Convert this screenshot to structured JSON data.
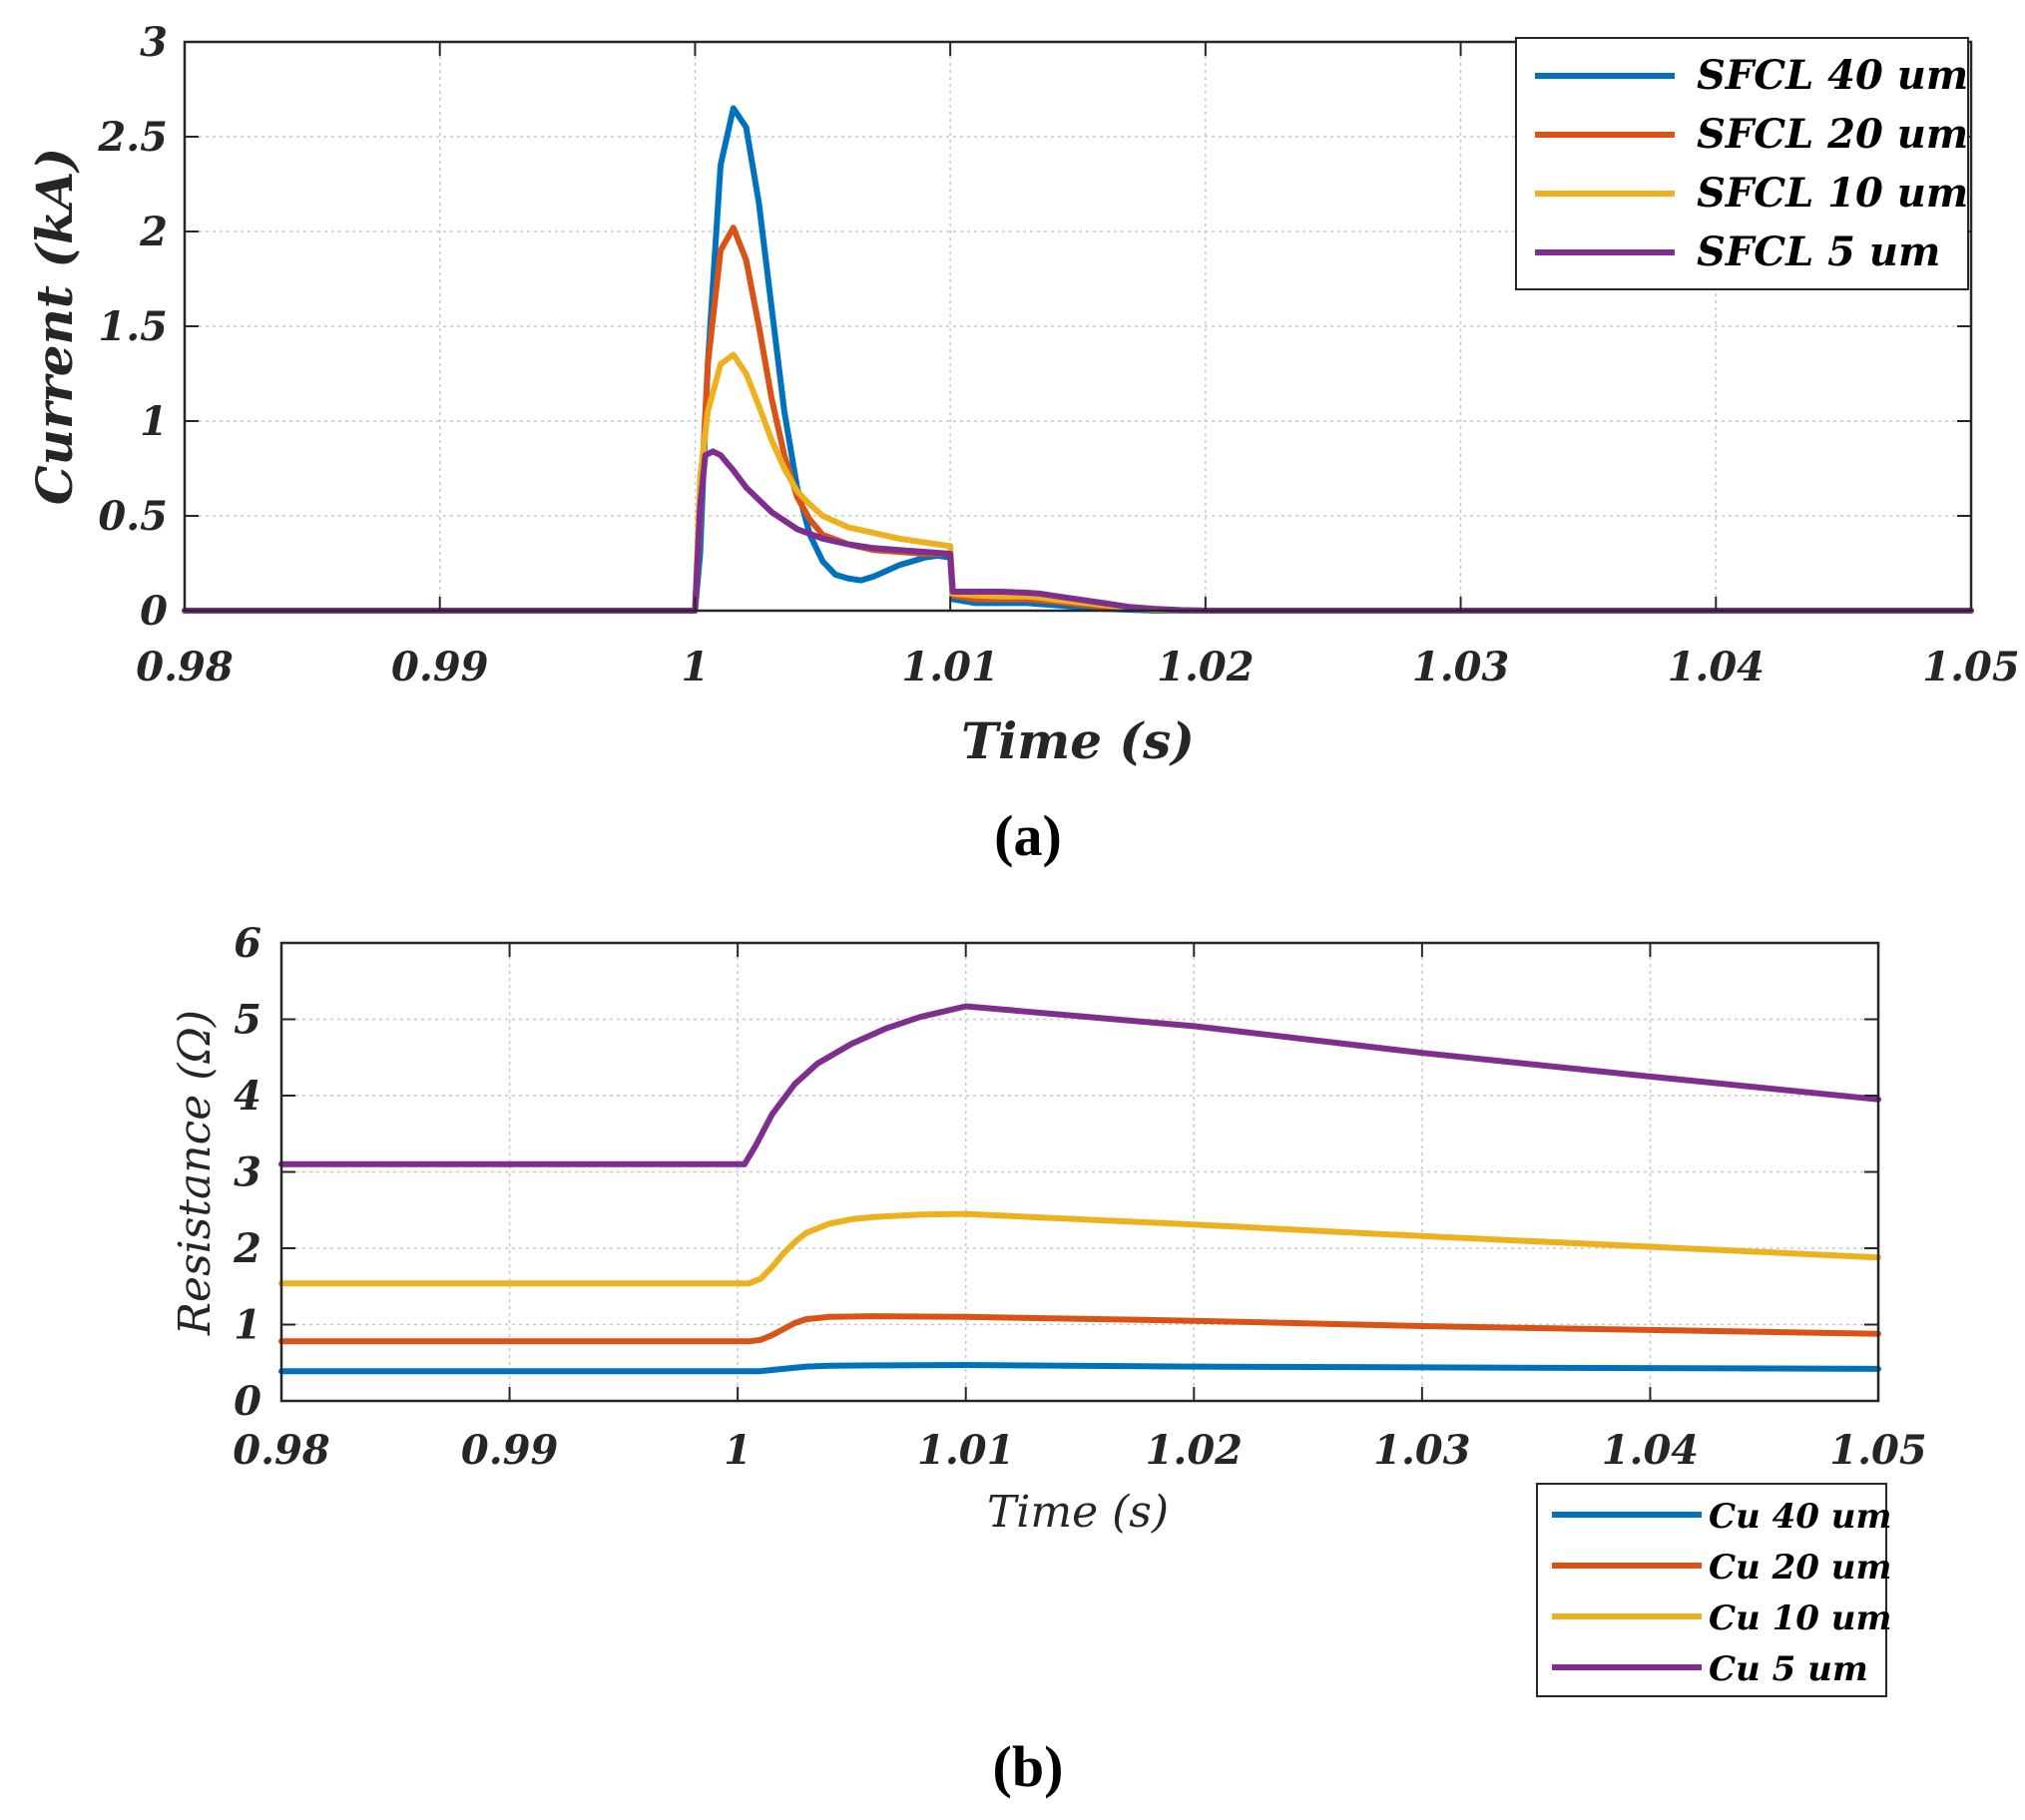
{
  "chart_data": [
    {
      "id": "a",
      "type": "line",
      "caption_letter": "a",
      "xlabel": "Time (s)",
      "ylabel": "Current (kA)",
      "xlim": [
        0.98,
        1.05
      ],
      "ylim": [
        0,
        3
      ],
      "xticks": [
        0.98,
        0.99,
        1,
        1.01,
        1.02,
        1.03,
        1.04,
        1.05
      ],
      "xtick_labels": [
        "0.98",
        "0.99",
        "1",
        "1.01",
        "1.02",
        "1.03",
        "1.04",
        "1.05"
      ],
      "yticks": [
        0,
        0.5,
        1,
        1.5,
        2,
        2.5,
        3
      ],
      "ytick_labels": [
        "0",
        "0.5",
        "1",
        "1.5",
        "2",
        "2.5",
        "3"
      ],
      "grid": true,
      "legend": "top-right",
      "series": [
        {
          "name": "SFCL 40 um",
          "color": "#0072BD",
          "x": [
            0.98,
            1.0,
            1.0002,
            1.0005,
            1.001,
            1.0015,
            1.002,
            1.0025,
            1.003,
            1.0035,
            1.004,
            1.0045,
            1.005,
            1.0055,
            1.006,
            1.0065,
            1.007,
            1.0075,
            1.008,
            1.0085,
            1.009,
            1.0095,
            1.01,
            1.0101,
            1.011,
            1.012,
            1.013,
            1.0135,
            1.014,
            1.015,
            1.016,
            1.017,
            1.018,
            1.02,
            1.05
          ],
          "y": [
            0,
            0,
            0.3,
            1.3,
            2.35,
            2.65,
            2.55,
            2.15,
            1.6,
            1.05,
            0.65,
            0.4,
            0.26,
            0.19,
            0.17,
            0.16,
            0.18,
            0.21,
            0.24,
            0.26,
            0.28,
            0.29,
            0.28,
            0.06,
            0.04,
            0.04,
            0.04,
            0.035,
            0.03,
            0.02,
            0.01,
            0.005,
            0,
            0,
            0
          ]
        },
        {
          "name": "SFCL 20 um",
          "color": "#D95319",
          "x": [
            0.98,
            1.0,
            1.0002,
            1.0005,
            1.001,
            1.0015,
            1.002,
            1.0025,
            1.003,
            1.0035,
            1.004,
            1.0045,
            1.005,
            1.006,
            1.007,
            1.008,
            1.009,
            1.0095,
            1.01,
            1.0101,
            1.011,
            1.012,
            1.013,
            1.0135,
            1.014,
            1.015,
            1.016,
            1.017,
            1.018,
            1.02,
            1.05
          ],
          "y": [
            0,
            0,
            0.5,
            1.3,
            1.9,
            2.02,
            1.85,
            1.5,
            1.12,
            0.82,
            0.6,
            0.48,
            0.4,
            0.35,
            0.32,
            0.31,
            0.3,
            0.3,
            0.3,
            0.08,
            0.06,
            0.06,
            0.06,
            0.055,
            0.05,
            0.035,
            0.02,
            0.01,
            0.005,
            0,
            0
          ]
        },
        {
          "name": "SFCL 10 um",
          "color": "#EDB120",
          "x": [
            0.98,
            1.0,
            1.0002,
            1.0005,
            1.001,
            1.0015,
            1.002,
            1.0025,
            1.003,
            1.0035,
            1.004,
            1.0045,
            1.005,
            1.006,
            1.007,
            1.008,
            1.009,
            1.01,
            1.0101,
            1.011,
            1.012,
            1.013,
            1.0135,
            1.014,
            1.015,
            1.016,
            1.017,
            1.018,
            1.02,
            1.05
          ],
          "y": [
            0,
            0,
            0.7,
            1.05,
            1.3,
            1.35,
            1.25,
            1.08,
            0.9,
            0.75,
            0.63,
            0.56,
            0.5,
            0.44,
            0.41,
            0.38,
            0.36,
            0.34,
            0.09,
            0.08,
            0.075,
            0.075,
            0.07,
            0.06,
            0.045,
            0.03,
            0.015,
            0.005,
            0,
            0
          ]
        },
        {
          "name": "SFCL 5 um",
          "color": "#7E2F8E",
          "x": [
            0.98,
            1.0,
            1.0002,
            1.0004,
            1.0007,
            1.001,
            1.0015,
            1.002,
            1.003,
            1.004,
            1.005,
            1.006,
            1.007,
            1.008,
            1.009,
            1.01,
            1.0101,
            1.011,
            1.012,
            1.013,
            1.0135,
            1.014,
            1.015,
            1.016,
            1.017,
            1.018,
            1.019,
            1.02,
            1.05
          ],
          "y": [
            0,
            0,
            0.55,
            0.82,
            0.84,
            0.82,
            0.74,
            0.65,
            0.52,
            0.43,
            0.38,
            0.35,
            0.33,
            0.32,
            0.31,
            0.3,
            0.1,
            0.1,
            0.1,
            0.095,
            0.09,
            0.08,
            0.06,
            0.04,
            0.02,
            0.01,
            0.003,
            0,
            0
          ]
        }
      ]
    },
    {
      "id": "b",
      "type": "line",
      "caption_letter": "b",
      "xlabel": "Time (s)",
      "ylabel": "Resistance (Ω)",
      "xlim": [
        0.98,
        1.05
      ],
      "ylim": [
        0,
        6
      ],
      "xticks": [
        0.98,
        0.99,
        1,
        1.01,
        1.02,
        1.03,
        1.04,
        1.05
      ],
      "xtick_labels": [
        "0.98",
        "0.99",
        "1",
        "1.01",
        "1.02",
        "1.03",
        "1.04",
        "1.05"
      ],
      "yticks": [
        0,
        1,
        2,
        3,
        4,
        5,
        6
      ],
      "ytick_labels": [
        "0",
        "1",
        "2",
        "3",
        "4",
        "5",
        "6"
      ],
      "grid": true,
      "legend": "bottom-right (outside)",
      "series": [
        {
          "name": "Cu 40 um",
          "color": "#0072BD",
          "x": [
            0.98,
            1.0005,
            1.001,
            1.002,
            1.003,
            1.004,
            1.006,
            1.01,
            1.02,
            1.05
          ],
          "y": [
            0.39,
            0.39,
            0.39,
            0.42,
            0.45,
            0.46,
            0.465,
            0.47,
            0.45,
            0.42
          ]
        },
        {
          "name": "Cu 20 um",
          "color": "#D95319",
          "x": [
            0.98,
            1.0005,
            1.001,
            1.0015,
            1.002,
            1.0025,
            1.003,
            1.004,
            1.006,
            1.01,
            1.02,
            1.03,
            1.04,
            1.05
          ],
          "y": [
            0.78,
            0.78,
            0.8,
            0.86,
            0.94,
            1.02,
            1.07,
            1.1,
            1.11,
            1.1,
            1.05,
            0.98,
            0.93,
            0.88
          ]
        },
        {
          "name": "Cu 10 um",
          "color": "#EDB120",
          "x": [
            0.98,
            1.0005,
            1.001,
            1.0015,
            1.002,
            1.0025,
            1.003,
            1.004,
            1.005,
            1.006,
            1.008,
            1.01,
            1.02,
            1.03,
            1.04,
            1.05
          ],
          "y": [
            1.54,
            1.54,
            1.6,
            1.75,
            1.93,
            2.08,
            2.2,
            2.32,
            2.38,
            2.41,
            2.44,
            2.45,
            2.31,
            2.16,
            2.02,
            1.88
          ]
        },
        {
          "name": "Cu 5 um",
          "color": "#7E2F8E",
          "x": [
            0.98,
            1.0003,
            1.0008,
            1.0015,
            1.0025,
            1.0035,
            1.005,
            1.0065,
            1.008,
            1.01,
            1.02,
            1.03,
            1.04,
            1.05
          ],
          "y": [
            3.1,
            3.1,
            3.35,
            3.75,
            4.15,
            4.42,
            4.68,
            4.88,
            5.03,
            5.17,
            4.91,
            4.56,
            4.25,
            3.95
          ]
        }
      ]
    }
  ]
}
